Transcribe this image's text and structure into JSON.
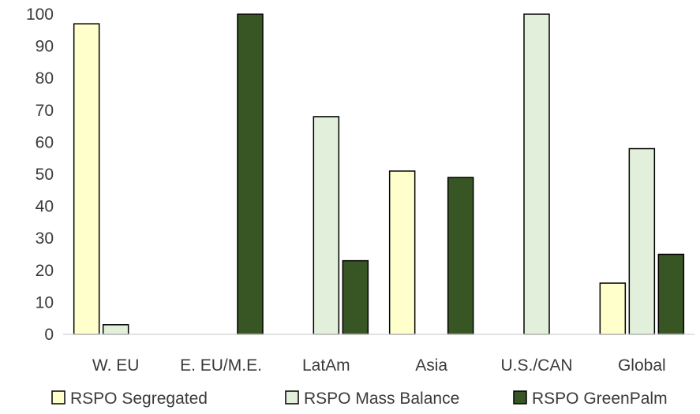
{
  "chart_data": {
    "type": "bar",
    "title": "",
    "xlabel": "",
    "ylabel": "",
    "ylim": [
      0,
      100
    ],
    "yticks": [
      0,
      10,
      20,
      30,
      40,
      50,
      60,
      70,
      80,
      90,
      100
    ],
    "grid": false,
    "legend_position": "bottom",
    "categories": [
      "W. EU",
      "E. EU/M.E.",
      "LatAm",
      "Asia",
      "U.S./CAN",
      "Global"
    ],
    "series": [
      {
        "name": "RSPO Segregated",
        "color": "#ffffcc",
        "values": [
          97,
          0,
          0,
          51,
          0,
          16
        ]
      },
      {
        "name": "RSPO Mass Balance",
        "color": "#e2efda",
        "values": [
          3,
          0,
          68,
          0,
          100,
          58
        ]
      },
      {
        "name": "RSPO GreenPalm",
        "color": "#375623",
        "values": [
          0,
          100,
          23,
          49,
          0,
          25
        ]
      }
    ]
  }
}
